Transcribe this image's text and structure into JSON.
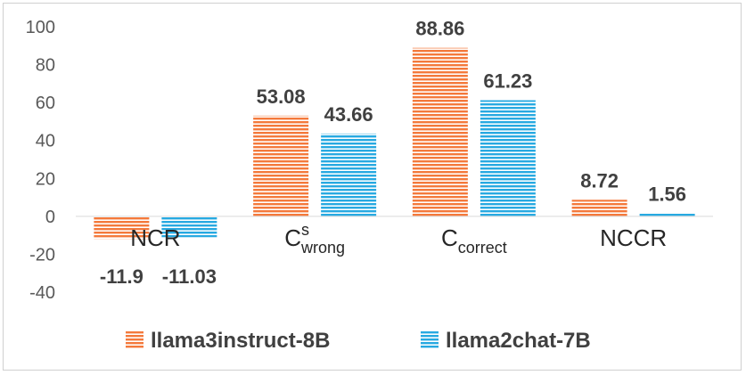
{
  "chart_data": {
    "type": "bar",
    "categories": [
      "NCR",
      "C^s_wrong",
      "C_correct",
      "NCCR"
    ],
    "category_labels": [
      {
        "main": "NCR",
        "sup": "",
        "sub": ""
      },
      {
        "main": "C",
        "sup": "s",
        "sub": "wrong"
      },
      {
        "main": "C",
        "sup": "",
        "sub": "correct"
      },
      {
        "main": "NCCR",
        "sup": "",
        "sub": ""
      }
    ],
    "series": [
      {
        "name": "llama3instruct-8B",
        "values": [
          -11.9,
          53.08,
          88.86,
          8.72
        ],
        "labels": [
          "-11.9",
          "53.08",
          "88.86",
          "8.72"
        ],
        "color": "#F4793B",
        "pattern": "horizontal-stripes"
      },
      {
        "name": "llama2chat-7B",
        "values": [
          -11.03,
          43.66,
          61.23,
          1.56
        ],
        "labels": [
          "-11.03",
          "43.66",
          "61.23",
          "1.56"
        ],
        "color": "#27A9E1",
        "pattern": "horizontal-stripes"
      }
    ],
    "yticks": [
      "100",
      "80",
      "60",
      "40",
      "20",
      "0",
      "-20",
      "-40"
    ],
    "ylim": [
      -40,
      100
    ],
    "grid": false,
    "legend_position": "bottom",
    "title": "",
    "xlabel": "",
    "ylabel": ""
  }
}
